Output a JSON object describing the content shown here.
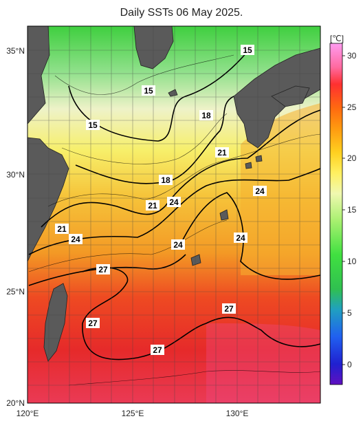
{
  "title": "Daily SSTs 06 May 2025.",
  "colorbar": {
    "unit": "[℃]",
    "ticks": [
      "30",
      "25",
      "20",
      "15",
      "10",
      "5",
      "0"
    ]
  },
  "axes": {
    "lat_labels": [
      "35°N",
      "30°N",
      "25°N",
      "20°N"
    ],
    "lon_labels": [
      "120°E",
      "125°E",
      "130°E"
    ]
  },
  "contour_labels": [
    "15",
    "15",
    "15",
    "18",
    "18",
    "21",
    "21",
    "21",
    "24",
    "24",
    "24",
    "24",
    "24",
    "27",
    "27",
    "27",
    "27"
  ],
  "colors": {
    "land": "#5a5a5a",
    "grid": "#555555",
    "contour": "#000000"
  }
}
